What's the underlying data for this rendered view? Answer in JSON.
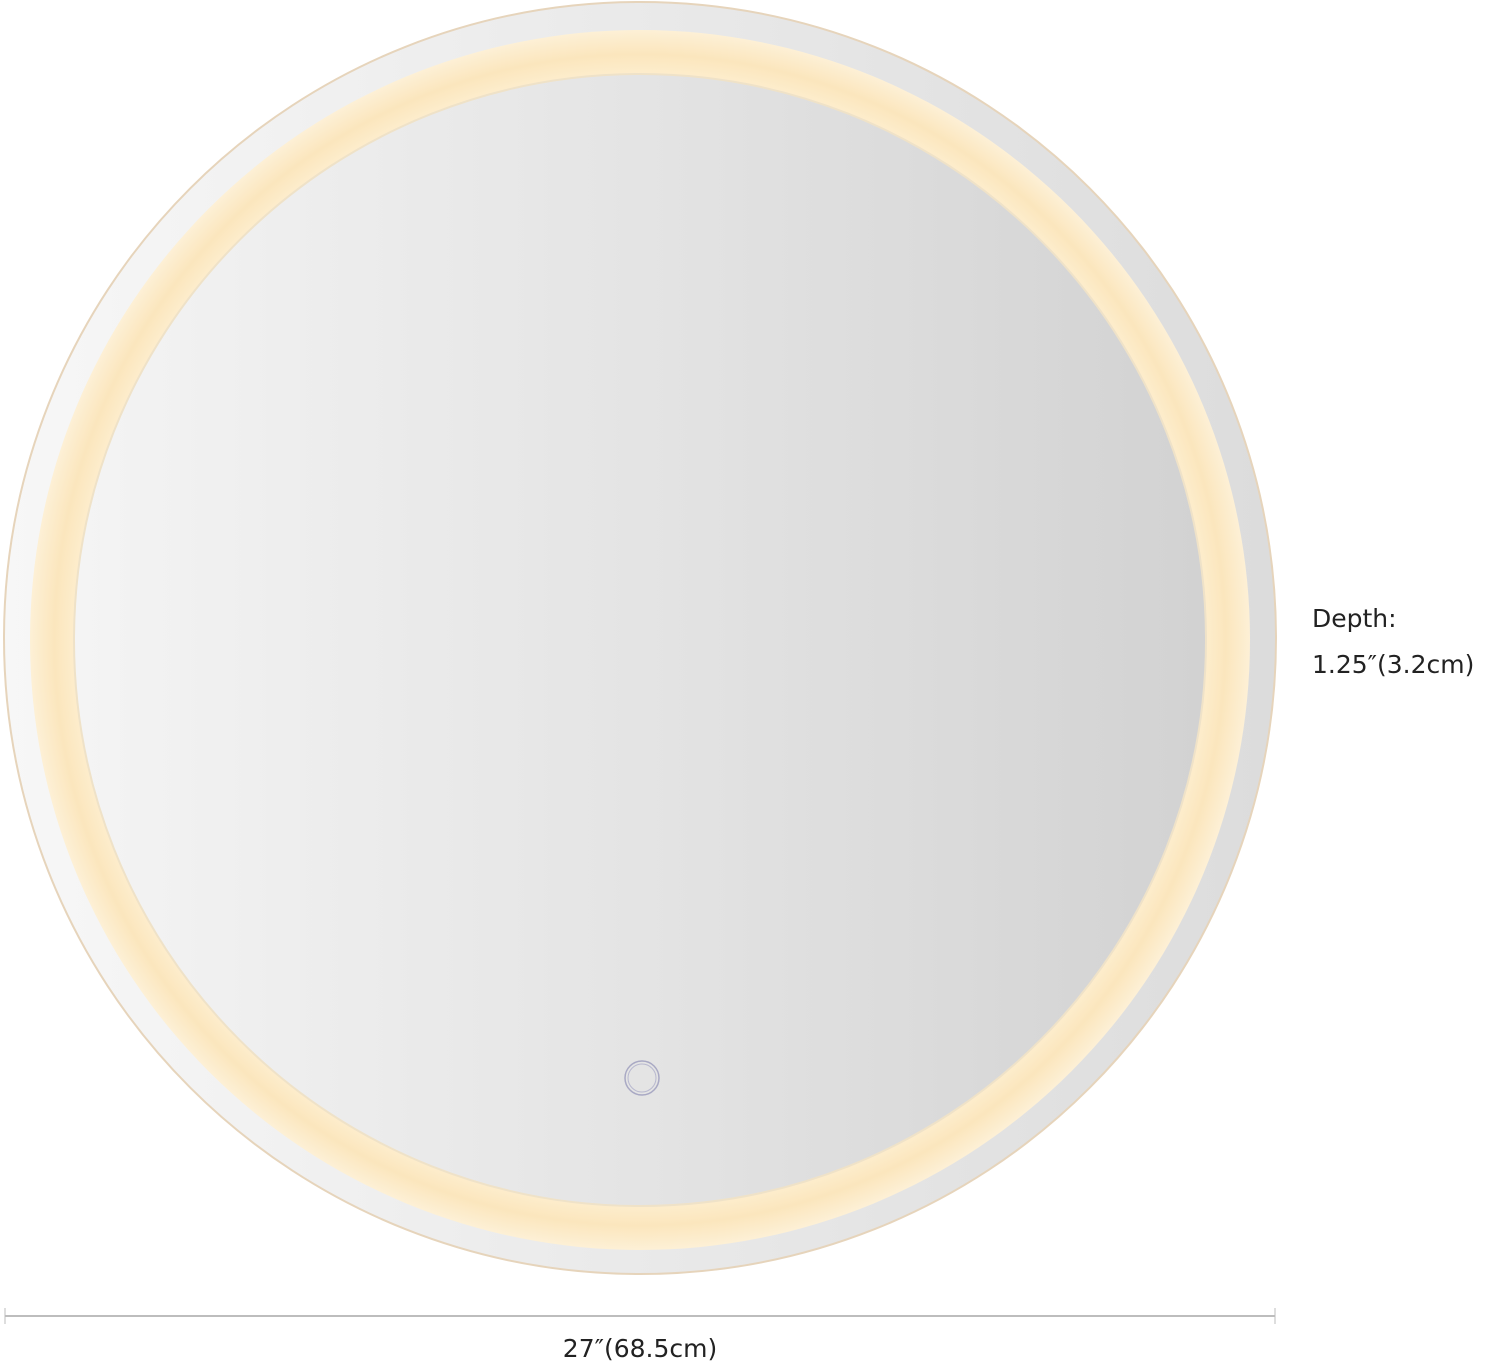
{
  "product": {
    "shape": "round LED backlit mirror",
    "light_color": "#fbe6bd",
    "touch_button_icon": "circle-touch-icon"
  },
  "dimensions": {
    "depth_label": "Depth:",
    "depth_value": "1.25″(3.2cm)",
    "width_value": "27″(68.5cm)"
  }
}
